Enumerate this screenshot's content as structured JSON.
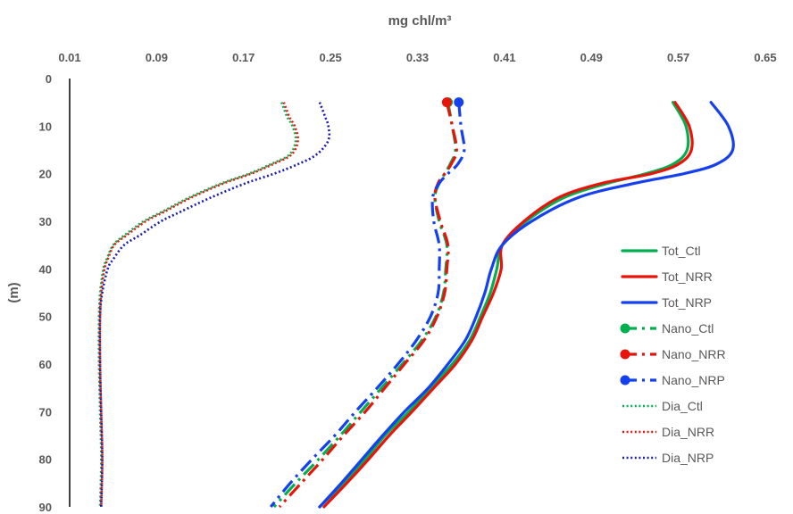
{
  "chart_data": {
    "type": "line",
    "xlabel": "mg chl/m³",
    "ylabel": "(m)",
    "xlim": [
      0.01,
      0.65
    ],
    "ylim": [
      0,
      90
    ],
    "x_axis_position": "top",
    "y_axis_inverted": true,
    "grid": false,
    "legend_position": "right",
    "xticks": [
      "0.01",
      "0.09",
      "0.17",
      "0.25",
      "0.33",
      "0.41",
      "0.49",
      "0.57",
      "0.65"
    ],
    "yticks": [
      "0",
      "10",
      "20",
      "30",
      "40",
      "50",
      "60",
      "70",
      "80",
      "90"
    ],
    "series": [
      {
        "name": "Tot_Ctl",
        "color": "#00B050",
        "style": "solid",
        "marker": false,
        "depth": [
          5,
          10,
          15,
          18,
          20,
          22,
          25,
          30,
          35,
          40,
          45,
          50,
          55,
          60,
          65,
          70,
          75,
          80,
          85,
          90
        ],
        "value": [
          0.565,
          0.577,
          0.578,
          0.565,
          0.54,
          0.505,
          0.465,
          0.43,
          0.408,
          0.403,
          0.397,
          0.388,
          0.378,
          0.362,
          0.342,
          0.322,
          0.3,
          0.282,
          0.262,
          0.24
        ]
      },
      {
        "name": "Tot_NRR",
        "color": "#E8140C",
        "style": "solid",
        "marker": false,
        "depth": [
          5,
          10,
          15,
          18,
          20,
          22,
          25,
          30,
          35,
          40,
          45,
          50,
          55,
          60,
          65,
          70,
          75,
          80,
          85,
          90
        ],
        "value": [
          0.567,
          0.58,
          0.582,
          0.57,
          0.545,
          0.5,
          0.46,
          0.428,
          0.408,
          0.407,
          0.4,
          0.39,
          0.38,
          0.365,
          0.345,
          0.325,
          0.304,
          0.285,
          0.265,
          0.244
        ]
      },
      {
        "name": "Tot_NRP",
        "color": "#1540F0",
        "style": "solid",
        "marker": false,
        "depth": [
          5,
          10,
          15,
          18,
          20,
          22,
          25,
          30,
          35,
          40,
          45,
          50,
          55,
          60,
          65,
          70,
          75,
          80,
          85,
          90
        ],
        "value": [
          0.6,
          0.616,
          0.62,
          0.605,
          0.575,
          0.53,
          0.478,
          0.435,
          0.408,
          0.398,
          0.392,
          0.384,
          0.374,
          0.358,
          0.34,
          0.318,
          0.298,
          0.279,
          0.26,
          0.24
        ]
      },
      {
        "name": "Nano_Ctl",
        "color": "#00B050",
        "style": "dashdot",
        "marker": true,
        "depth": [
          5,
          10,
          15,
          18,
          20,
          22,
          25,
          30,
          35,
          40,
          45,
          50,
          55,
          60,
          65,
          70,
          75,
          80,
          85,
          90
        ],
        "value": [
          0.358,
          0.362,
          0.365,
          0.36,
          0.355,
          0.35,
          0.346,
          0.35,
          0.357,
          0.356,
          0.354,
          0.347,
          0.334,
          0.316,
          0.297,
          0.278,
          0.259,
          0.239,
          0.218,
          0.198
        ]
      },
      {
        "name": "Nano_NRR",
        "color": "#E8140C",
        "style": "dashdot",
        "marker": true,
        "depth": [
          5,
          10,
          15,
          18,
          20,
          22,
          25,
          30,
          35,
          40,
          45,
          50,
          55,
          60,
          65,
          70,
          75,
          80,
          85,
          90
        ],
        "value": [
          0.357,
          0.362,
          0.366,
          0.361,
          0.355,
          0.349,
          0.346,
          0.351,
          0.358,
          0.357,
          0.355,
          0.348,
          0.336,
          0.318,
          0.3,
          0.282,
          0.262,
          0.243,
          0.223,
          0.203
        ]
      },
      {
        "name": "Nano_NRP",
        "color": "#1540F0",
        "style": "dashdot",
        "marker": true,
        "depth": [
          5,
          10,
          15,
          18,
          20,
          22,
          25,
          30,
          35,
          40,
          45,
          50,
          55,
          60,
          65,
          70,
          75,
          80,
          85,
          90
        ],
        "value": [
          0.368,
          0.37,
          0.373,
          0.367,
          0.358,
          0.35,
          0.344,
          0.345,
          0.35,
          0.35,
          0.349,
          0.342,
          0.329,
          0.312,
          0.293,
          0.273,
          0.254,
          0.233,
          0.213,
          0.195
        ]
      },
      {
        "name": "Dia_Ctl",
        "color": "#00B050",
        "style": "dotted",
        "marker": false,
        "depth": [
          5,
          8,
          10,
          13,
          16,
          18,
          20,
          22,
          25,
          28,
          30,
          33,
          35,
          38,
          40,
          45,
          50,
          60,
          70,
          80,
          90
        ],
        "value": [
          0.205,
          0.21,
          0.215,
          0.218,
          0.212,
          0.195,
          0.175,
          0.15,
          0.12,
          0.095,
          0.078,
          0.06,
          0.05,
          0.044,
          0.041,
          0.038,
          0.037,
          0.037,
          0.038,
          0.039,
          0.038
        ]
      },
      {
        "name": "Dia_NRR",
        "color": "#E8140C",
        "style": "dotted",
        "marker": false,
        "depth": [
          5,
          8,
          10,
          13,
          16,
          18,
          20,
          22,
          25,
          28,
          30,
          33,
          35,
          38,
          40,
          45,
          50,
          60,
          70,
          80,
          90
        ],
        "value": [
          0.207,
          0.212,
          0.217,
          0.22,
          0.214,
          0.197,
          0.177,
          0.152,
          0.122,
          0.097,
          0.08,
          0.062,
          0.051,
          0.045,
          0.042,
          0.039,
          0.038,
          0.038,
          0.039,
          0.04,
          0.039
        ]
      },
      {
        "name": "Dia_NRP",
        "color": "#1A1AB0",
        "style": "dotted",
        "marker": false,
        "depth": [
          5,
          8,
          10,
          13,
          16,
          18,
          20,
          22,
          25,
          28,
          30,
          33,
          35,
          38,
          40,
          45,
          50,
          60,
          70,
          80,
          90
        ],
        "value": [
          0.24,
          0.245,
          0.248,
          0.248,
          0.237,
          0.22,
          0.198,
          0.172,
          0.14,
          0.112,
          0.094,
          0.074,
          0.06,
          0.05,
          0.045,
          0.04,
          0.038,
          0.038,
          0.039,
          0.04,
          0.039
        ]
      }
    ]
  }
}
